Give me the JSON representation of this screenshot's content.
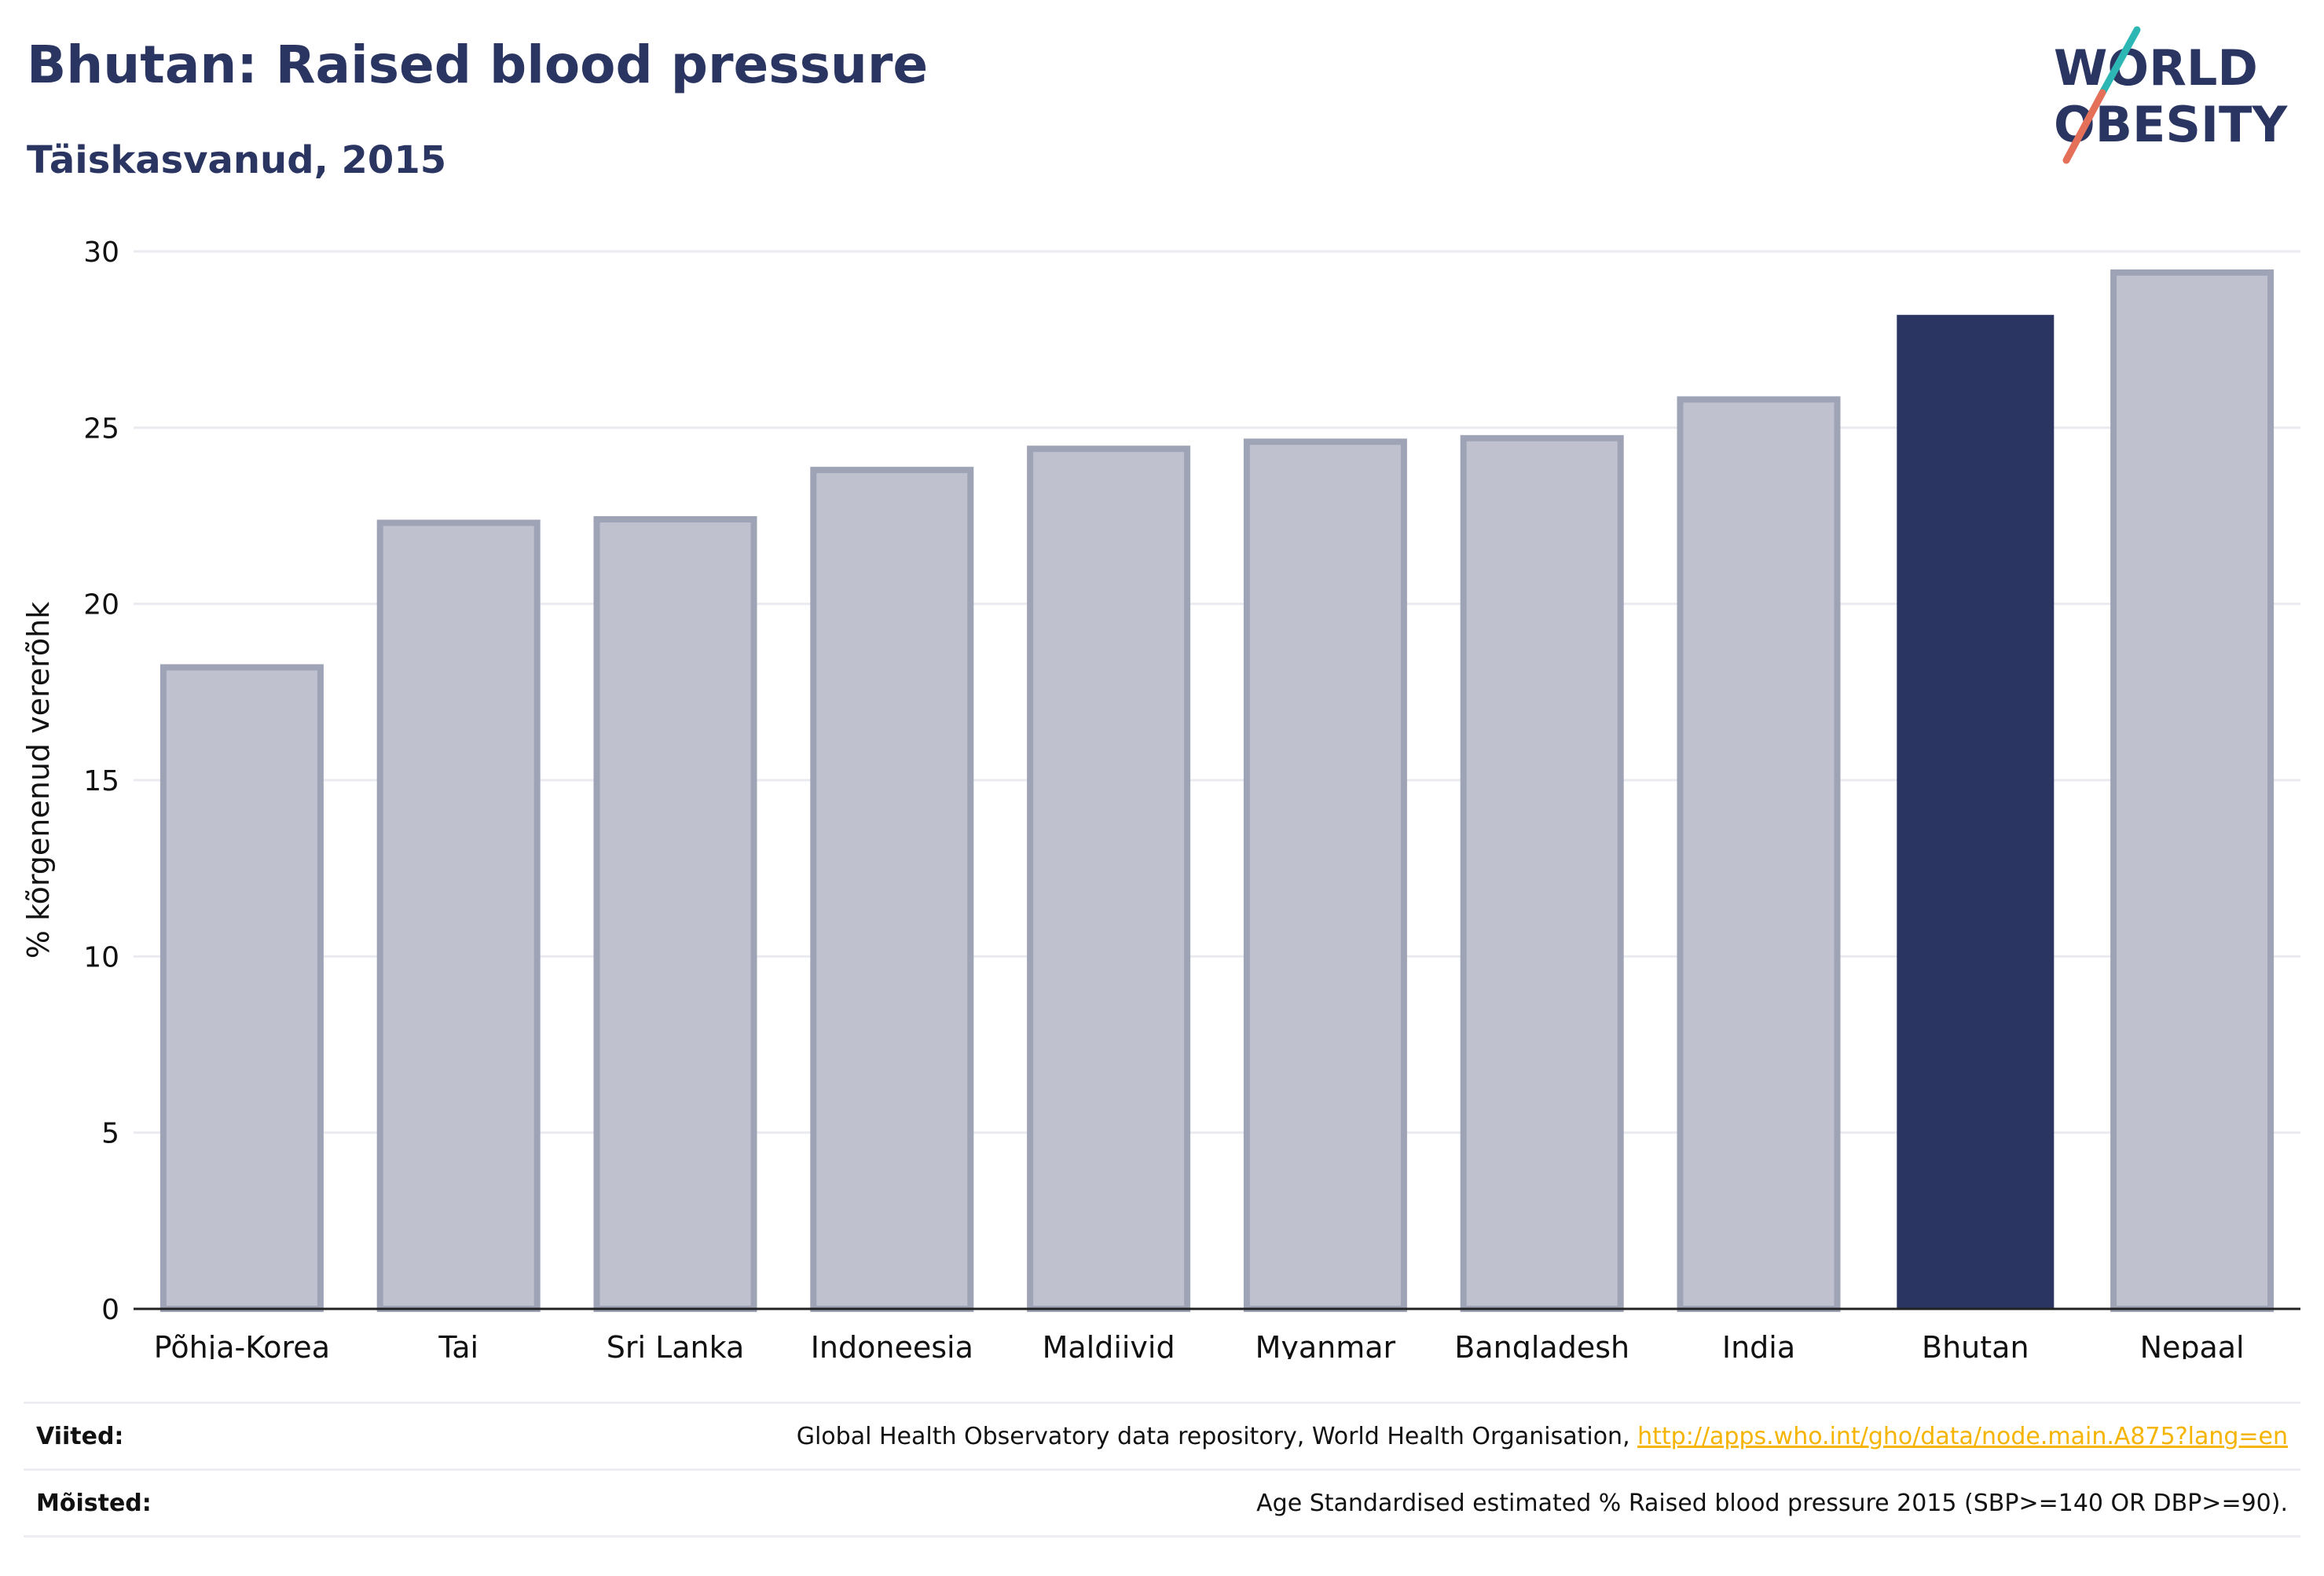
{
  "header": {
    "title": "Bhutan: Raised blood pressure",
    "subtitle": "Täiskasvanud, 2015",
    "logo_text": "WORLD OBESITY"
  },
  "colors": {
    "title": "#2a3562",
    "highlight_bar": "#2a3562",
    "other_bar_fill": "#bfc2ce",
    "other_bar_stroke": "#9fa3b6",
    "logo_teal": "#2db7b4",
    "logo_coral": "#e5705a",
    "link": "#f5b400"
  },
  "chart_data": {
    "type": "bar",
    "title": "Bhutan: Raised blood pressure",
    "subtitle": "Täiskasvanud, 2015",
    "categories": [
      "Põhja-Korea",
      "Tai",
      "Sri Lanka",
      "Indoneesia",
      "Maldiivid",
      "Myanmar",
      "Bangladesh",
      "India",
      "Bhutan",
      "Nepaal"
    ],
    "values": [
      18.2,
      22.3,
      22.4,
      23.8,
      24.4,
      24.6,
      24.7,
      25.8,
      28.2,
      29.4
    ],
    "highlight": "Bhutan",
    "xlabel": "",
    "ylabel": "% kõrgenenud vererõhk",
    "ylim": [
      0,
      30
    ],
    "yticks": [
      0,
      5,
      10,
      15,
      20,
      25,
      30
    ],
    "grid": true,
    "legend": "none"
  },
  "footer": {
    "sources_label": "Viited:",
    "sources_text": "Global Health Observatory data repository, World Health Organisation, ",
    "sources_link": "http://apps.who.int/gho/data/node.main.A875?lang=en",
    "definitions_label": "Mõisted:",
    "definitions_text": "Age Standardised estimated % Raised blood pressure 2015 (SBP>=140 OR DBP>=90)."
  }
}
